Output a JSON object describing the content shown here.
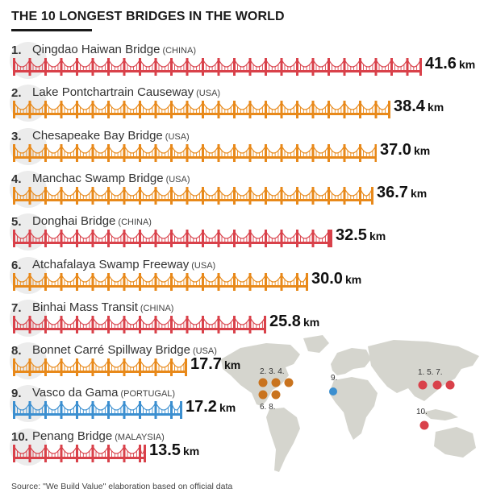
{
  "title": "THE 10 LONGEST BRIDGES IN THE WORLD",
  "source": "Source: \"We Build Value\" elaboration based on official data",
  "colors": {
    "china": "#d9414a",
    "usa": "#e8891a",
    "portugal": "#3b8fd0",
    "malaysia": "#d9414a",
    "map_land": "#d5d5ce"
  },
  "chart_data": {
    "type": "bar",
    "orientation": "horizontal",
    "unit": "km",
    "bars": [
      {
        "rank": "1.",
        "name": "Qingdao Haiwan Bridge",
        "country": "(CHINA)",
        "value": 41.6,
        "value_label": "41.6",
        "color": "#d9414a"
      },
      {
        "rank": "2.",
        "name": "Lake Pontchartrain Causeway",
        "country": "(USA)",
        "value": 38.4,
        "value_label": "38.4",
        "color": "#e8891a"
      },
      {
        "rank": "3.",
        "name": "Chesapeake Bay Bridge",
        "country": "(USA)",
        "value": 37.0,
        "value_label": "37.0",
        "color": "#e8891a"
      },
      {
        "rank": "4.",
        "name": "Manchac Swamp Bridge",
        "country": "(USA)",
        "value": 36.7,
        "value_label": "36.7",
        "color": "#e8891a"
      },
      {
        "rank": "5.",
        "name": "Donghai Bridge",
        "country": "(CHINA)",
        "value": 32.5,
        "value_label": "32.5",
        "color": "#d9414a"
      },
      {
        "rank": "6.",
        "name": "Atchafalaya Swamp Freeway",
        "country": "(USA)",
        "value": 30.0,
        "value_label": "30.0",
        "color": "#e8891a"
      },
      {
        "rank": "7.",
        "name": "Binhai Mass Transit",
        "country": "(CHINA)",
        "value": 25.8,
        "value_label": "25.8",
        "color": "#d9414a"
      },
      {
        "rank": "8.",
        "name": "Bonnet Carré Spillway Bridge",
        "country": "(USA)",
        "value": 17.7,
        "value_label": "17.7",
        "color": "#e8891a"
      },
      {
        "rank": "9.",
        "name": "Vasco da Gama",
        "country": "(PORTUGAL)",
        "value": 17.2,
        "value_label": "17.2",
        "color": "#3b8fd0"
      },
      {
        "rank": "10.",
        "name": "Penang Bridge",
        "country": "(MALAYSIA)",
        "value": 13.5,
        "value_label": "13.5",
        "color": "#d9414a"
      }
    ]
  },
  "map": {
    "labels": [
      {
        "text": "2. 3. 4.",
        "group": "usa-top"
      },
      {
        "text": "6. 8.",
        "group": "usa-bottom"
      },
      {
        "text": "9.",
        "group": "portugal"
      },
      {
        "text": "1. 5. 7.",
        "group": "china"
      },
      {
        "text": "10.",
        "group": "malaysia"
      }
    ]
  }
}
